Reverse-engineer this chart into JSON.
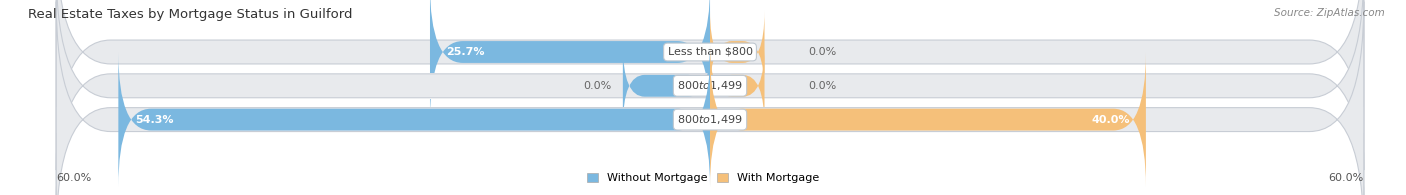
{
  "title": "Real Estate Taxes by Mortgage Status in Guilford",
  "source": "Source: ZipAtlas.com",
  "rows": [
    {
      "label": "Less than $800",
      "without_mortgage": 25.7,
      "with_mortgage": 0.0,
      "wm_small": 5.0
    },
    {
      "label": "$800 to $1,499",
      "without_mortgage": 0.0,
      "with_mortgage": 0.0,
      "wo_small": 8.0,
      "wm_small": 5.0
    },
    {
      "label": "$800 to $1,499",
      "without_mortgage": 54.3,
      "with_mortgage": 40.0,
      "wm_small": 0
    }
  ],
  "x_max": 60.0,
  "color_without": "#7BB8E0",
  "color_with": "#F5C07A",
  "bar_bg": "#E8EAED",
  "legend_without": "Without Mortgage",
  "legend_with": "With Mortgage",
  "row_labels_display": [
    "Less than $800",
    "$800 to $1,499",
    "$800 to $1,499"
  ],
  "wo_values_display": [
    "25.7%",
    "0.0%",
    "54.3%"
  ],
  "wm_values_display": [
    "0.0%",
    "0.0%",
    "40.0%"
  ]
}
